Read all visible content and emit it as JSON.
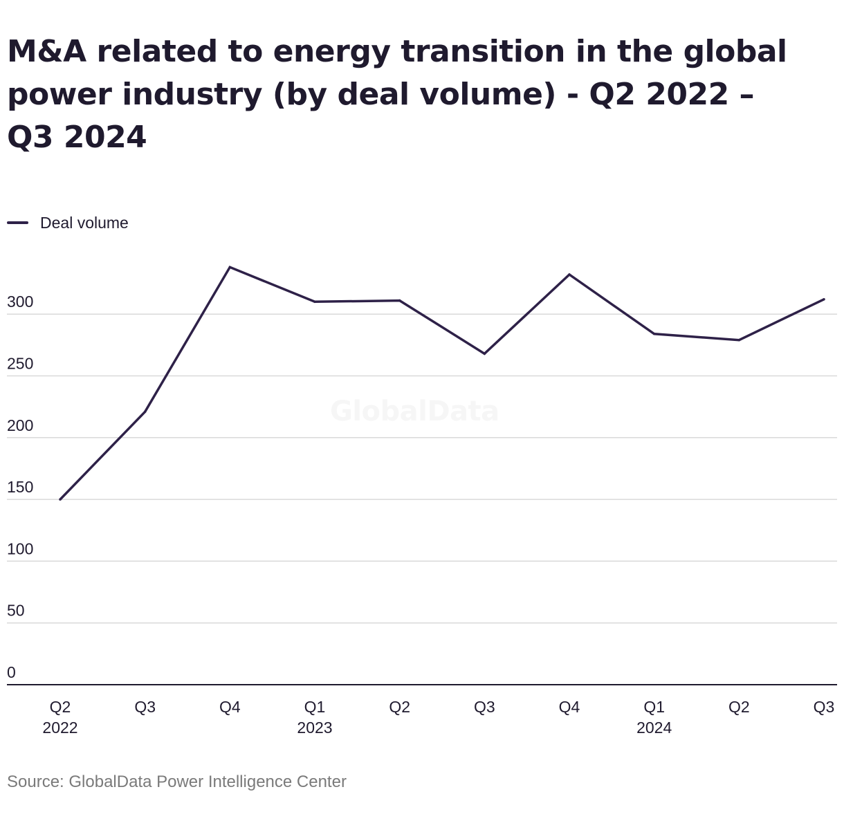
{
  "chart_data": {
    "type": "line",
    "title": "M&A related to energy transition in the global power industry (by deal volume) - Q2 2022 – Q3 2024",
    "series": [
      {
        "name": "Deal volume",
        "color": "#2e2148",
        "values": [
          150,
          221,
          338,
          310,
          311,
          268,
          332,
          284,
          279,
          312
        ]
      }
    ],
    "categories": [
      {
        "quarter": "Q2",
        "year": "2022"
      },
      {
        "quarter": "Q3",
        "year": ""
      },
      {
        "quarter": "Q4",
        "year": ""
      },
      {
        "quarter": "Q1",
        "year": "2023"
      },
      {
        "quarter": "Q2",
        "year": ""
      },
      {
        "quarter": "Q3",
        "year": ""
      },
      {
        "quarter": "Q4",
        "year": ""
      },
      {
        "quarter": "Q1",
        "year": "2024"
      },
      {
        "quarter": "Q2",
        "year": ""
      },
      {
        "quarter": "Q3",
        "year": ""
      }
    ],
    "yticks": [
      0,
      50,
      100,
      150,
      200,
      250,
      300
    ],
    "ylim": [
      0,
      345
    ],
    "xlabel": "",
    "ylabel": "",
    "grid": true,
    "legend_position": "top-left",
    "watermark": "GlobalData",
    "source": "Source: GlobalData Power Intelligence Center",
    "colors": {
      "line": "#2e2148",
      "grid": "#d9d9d9",
      "axis": "#1f1a2e",
      "text": "#1f1a2e",
      "source_text": "#7a7a7a"
    }
  }
}
